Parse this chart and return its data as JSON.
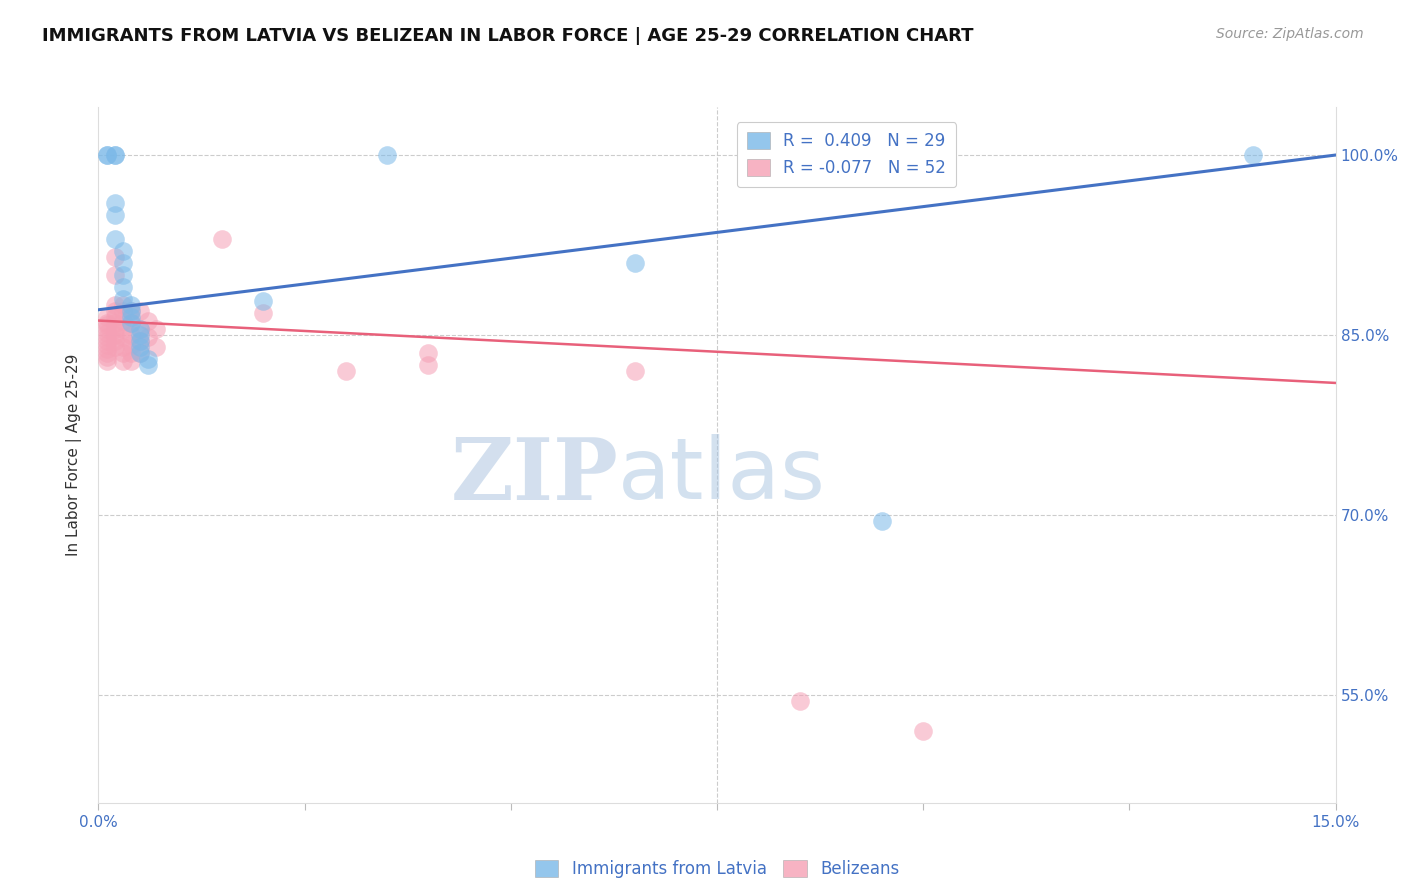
{
  "title": "IMMIGRANTS FROM LATVIA VS BELIZEAN IN LABOR FORCE | AGE 25-29 CORRELATION CHART",
  "source": "Source: ZipAtlas.com",
  "ylabel": "In Labor Force | Age 25-29",
  "xlim": [
    0.0,
    0.15
  ],
  "ylim": [
    0.46,
    1.04
  ],
  "yticks": [
    0.55,
    0.7,
    0.85,
    1.0
  ],
  "ytick_labels": [
    "55.0%",
    "70.0%",
    "85.0%",
    "100.0%"
  ],
  "xticks": [
    0.0,
    0.025,
    0.05,
    0.075,
    0.1,
    0.125,
    0.15
  ],
  "xtick_labels": [
    "0.0%",
    "",
    "",
    "",
    "",
    "",
    "15.0%"
  ],
  "legend_latvian": "R =  0.409   N = 29",
  "legend_belizean": "R = -0.077   N = 52",
  "latvian_color": "#7ab8e8",
  "belizean_color": "#f5a0b5",
  "latvian_line_color": "#4472c4",
  "belizean_line_color": "#e8607a",
  "watermark_zip": "ZIP",
  "watermark_atlas": "atlas",
  "latvian_points": [
    [
      0.001,
      1.0
    ],
    [
      0.001,
      1.0
    ],
    [
      0.002,
      1.0
    ],
    [
      0.002,
      1.0
    ],
    [
      0.002,
      0.96
    ],
    [
      0.002,
      0.95
    ],
    [
      0.002,
      0.93
    ],
    [
      0.003,
      0.92
    ],
    [
      0.003,
      0.91
    ],
    [
      0.003,
      0.9
    ],
    [
      0.003,
      0.89
    ],
    [
      0.003,
      0.88
    ],
    [
      0.004,
      0.875
    ],
    [
      0.004,
      0.87
    ],
    [
      0.004,
      0.865
    ],
    [
      0.004,
      0.86
    ],
    [
      0.005,
      0.855
    ],
    [
      0.005,
      0.85
    ],
    [
      0.005,
      0.845
    ],
    [
      0.005,
      0.84
    ],
    [
      0.005,
      0.835
    ],
    [
      0.006,
      0.83
    ],
    [
      0.006,
      0.825
    ],
    [
      0.02,
      0.878
    ],
    [
      0.035,
      1.0
    ],
    [
      0.065,
      0.91
    ],
    [
      0.09,
      1.0
    ],
    [
      0.095,
      0.695
    ],
    [
      0.14,
      1.0
    ]
  ],
  "belizean_points": [
    [
      0.001,
      0.865
    ],
    [
      0.001,
      0.86
    ],
    [
      0.001,
      0.858
    ],
    [
      0.001,
      0.855
    ],
    [
      0.001,
      0.852
    ],
    [
      0.001,
      0.848
    ],
    [
      0.001,
      0.845
    ],
    [
      0.001,
      0.842
    ],
    [
      0.001,
      0.838
    ],
    [
      0.001,
      0.835
    ],
    [
      0.001,
      0.832
    ],
    [
      0.001,
      0.828
    ],
    [
      0.002,
      0.915
    ],
    [
      0.002,
      0.9
    ],
    [
      0.002,
      0.875
    ],
    [
      0.002,
      0.87
    ],
    [
      0.002,
      0.865
    ],
    [
      0.002,
      0.86
    ],
    [
      0.002,
      0.855
    ],
    [
      0.002,
      0.85
    ],
    [
      0.002,
      0.845
    ],
    [
      0.002,
      0.84
    ],
    [
      0.003,
      0.875
    ],
    [
      0.003,
      0.87
    ],
    [
      0.003,
      0.862
    ],
    [
      0.003,
      0.855
    ],
    [
      0.003,
      0.848
    ],
    [
      0.003,
      0.84
    ],
    [
      0.003,
      0.835
    ],
    [
      0.003,
      0.828
    ],
    [
      0.004,
      0.87
    ],
    [
      0.004,
      0.86
    ],
    [
      0.004,
      0.85
    ],
    [
      0.004,
      0.842
    ],
    [
      0.004,
      0.835
    ],
    [
      0.004,
      0.828
    ],
    [
      0.005,
      0.87
    ],
    [
      0.005,
      0.855
    ],
    [
      0.005,
      0.845
    ],
    [
      0.005,
      0.835
    ],
    [
      0.006,
      0.862
    ],
    [
      0.006,
      0.848
    ],
    [
      0.007,
      0.855
    ],
    [
      0.007,
      0.84
    ],
    [
      0.015,
      0.93
    ],
    [
      0.02,
      0.868
    ],
    [
      0.03,
      0.82
    ],
    [
      0.04,
      0.835
    ],
    [
      0.04,
      0.825
    ],
    [
      0.065,
      0.82
    ],
    [
      0.085,
      0.545
    ],
    [
      0.1,
      0.52
    ]
  ],
  "latvian_line": [
    0.0,
    0.871,
    0.15,
    1.0
  ],
  "belizean_line": [
    0.0,
    0.862,
    0.15,
    0.81
  ]
}
